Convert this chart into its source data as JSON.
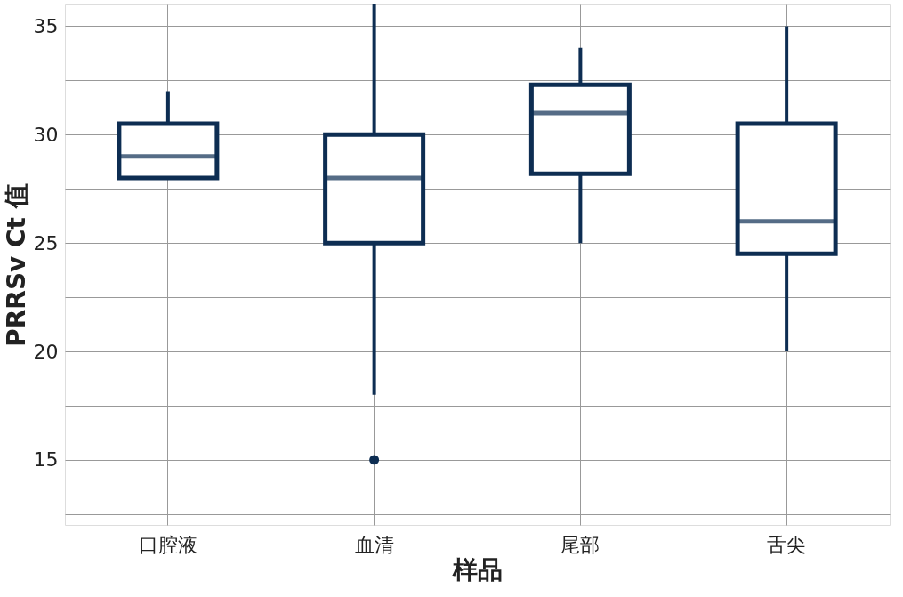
{
  "chart_data": {
    "type": "box",
    "xlabel": "样品",
    "ylabel": "PRRSv Ct 值",
    "categories": [
      "口腔液",
      "血清",
      "尾部",
      "舌尖"
    ],
    "series": [
      {
        "color": "#0d2d52",
        "boxes": [
          {
            "low": 28,
            "q1": 28,
            "median": 29,
            "q3": 30.5,
            "high": 32
          },
          {
            "low": 18,
            "q1": 25,
            "median": 28,
            "q3": 30,
            "high": 36,
            "outliers": [
              15
            ]
          },
          {
            "low": 25,
            "q1": 28.2,
            "median": 31,
            "q3": 32.3,
            "high": 34
          },
          {
            "low": 20,
            "q1": 24.5,
            "median": 26,
            "q3": 30.5,
            "high": 35
          }
        ]
      }
    ],
    "ylim": [
      12,
      36
    ],
    "yticks": [
      {
        "value": 12.5,
        "label": null
      },
      15,
      {
        "value": 17.5,
        "label": null
      },
      20,
      {
        "value": 22.5,
        "label": null
      },
      25,
      {
        "value": 27.5,
        "label": null
      },
      30,
      {
        "value": 32.5,
        "label": null
      },
      35
    ],
    "grid": true
  }
}
